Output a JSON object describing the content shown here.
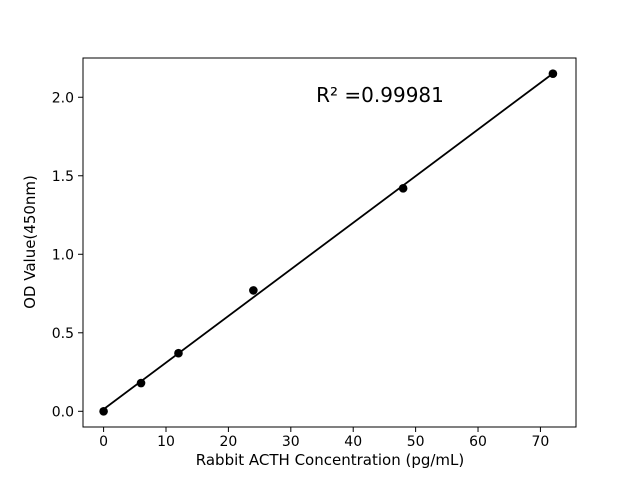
{
  "chart_data": {
    "type": "scatter",
    "title": "",
    "xlabel": "Rabbit ACTH Concentration (pg/mL)",
    "ylabel": "OD Value(450nm)",
    "annotation": "R² =0.99981",
    "r_squared_value": 0.99981,
    "x": [
      0,
      6,
      12,
      24,
      48,
      72
    ],
    "y": [
      0.0,
      0.18,
      0.37,
      0.77,
      1.42,
      2.15
    ],
    "fit_line": {
      "slope": 0.0297,
      "intercept": 0.013,
      "x_start": 0,
      "x_end": 72
    },
    "xlim": [
      -3.3,
      75.7
    ],
    "ylim": [
      -0.1,
      2.25
    ],
    "xticks": [
      0,
      10,
      20,
      30,
      40,
      50,
      60,
      70
    ],
    "xtick_labels": [
      "0",
      "10",
      "20",
      "30",
      "40",
      "50",
      "60",
      "70"
    ],
    "yticks": [
      0.0,
      0.5,
      1.0,
      1.5,
      2.0
    ],
    "ytick_labels": [
      "0.0",
      "0.5",
      "1.0",
      "1.5",
      "2.0"
    ],
    "grid": false,
    "legend": "none",
    "marker_color": "#000000",
    "line_color": "#000000",
    "axis_color": "#000000",
    "background_color": "#ffffff"
  }
}
